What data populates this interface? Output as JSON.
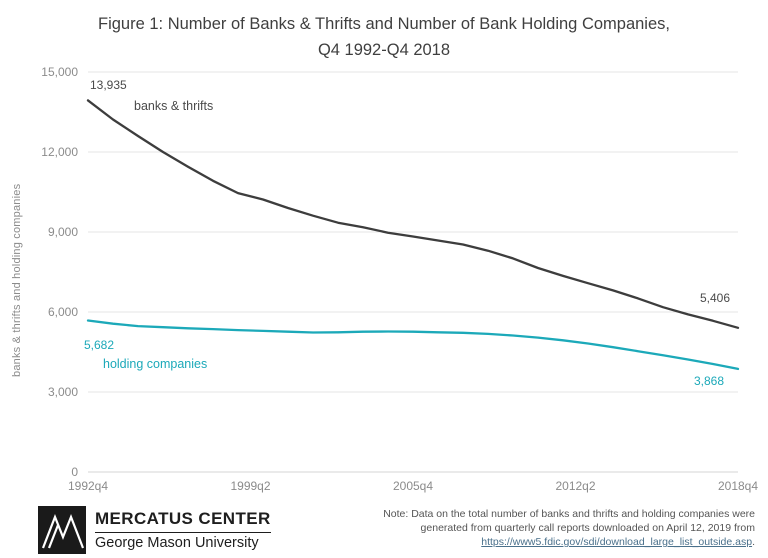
{
  "title": "Figure 1: Number of Banks & Thrifts and Number of Bank Holding Companies, Q4 1992-Q4 2018",
  "chart_data": {
    "type": "line",
    "title": "Figure 1: Number of Banks & Thrifts and Number of Bank Holding Companies, Q4 1992-Q4 2018",
    "xlabel": "",
    "ylabel": "banks & thrifts and holding companies",
    "xlim": [
      1992.75,
      2018.75
    ],
    "ylim": [
      0,
      15000
    ],
    "grid": true,
    "legend_position": "inline-annotations",
    "x": [
      1992.75,
      1993.75,
      1994.75,
      1995.75,
      1996.75,
      1997.75,
      1998.75,
      1999.75,
      2000.75,
      2001.75,
      2002.75,
      2003.75,
      2004.75,
      2005.75,
      2006.75,
      2007.75,
      2008.75,
      2009.75,
      2010.75,
      2011.75,
      2012.75,
      2013.75,
      2014.75,
      2015.75,
      2016.75,
      2017.75,
      2018.75
    ],
    "xticks": {
      "values": [
        1992.75,
        1999.25,
        2005.75,
        2012.25,
        2018.75
      ],
      "labels": [
        "1992q4",
        "1999q2",
        "2005q4",
        "2012q2",
        "2018q4"
      ]
    },
    "yticks": {
      "values": [
        0,
        3000,
        6000,
        9000,
        12000,
        15000
      ],
      "labels": [
        "0",
        "3,000",
        "6,000",
        "9,000",
        "12,000",
        "15,000"
      ]
    },
    "series": [
      {
        "name": "banks & thrifts",
        "color": "#3d3d3d",
        "values": [
          13935,
          13220,
          12600,
          12000,
          11450,
          10920,
          10460,
          10220,
          9900,
          9610,
          9350,
          9180,
          8975,
          8830,
          8680,
          8530,
          8300,
          8010,
          7650,
          7355,
          7080,
          6810,
          6510,
          6180,
          5910,
          5670,
          5406
        ],
        "label_start": "13,935",
        "label_end": "5,406"
      },
      {
        "name": "holding companies",
        "color": "#1ca9b9",
        "values": [
          5682,
          5560,
          5470,
          5430,
          5390,
          5360,
          5320,
          5290,
          5260,
          5230,
          5240,
          5260,
          5270,
          5260,
          5240,
          5220,
          5180,
          5120,
          5040,
          4940,
          4820,
          4680,
          4530,
          4380,
          4220,
          4050,
          3868
        ],
        "label_start": "5,682",
        "label_end": "3,868"
      }
    ]
  },
  "footer": {
    "logo": {
      "icon": "mercatus-mountain-logo",
      "org": "MERCATUS CENTER",
      "sub": "George Mason University"
    },
    "note_line1": "Note: Data on the total number of banks and thrifts and holding companies were",
    "note_line2": "generated from quarterly call reports downloaded on April 12, 2019 from",
    "note_link": "https://www5.fdic.gov/sdi/download_large_list_outside.asp",
    "note_suffix": "."
  }
}
